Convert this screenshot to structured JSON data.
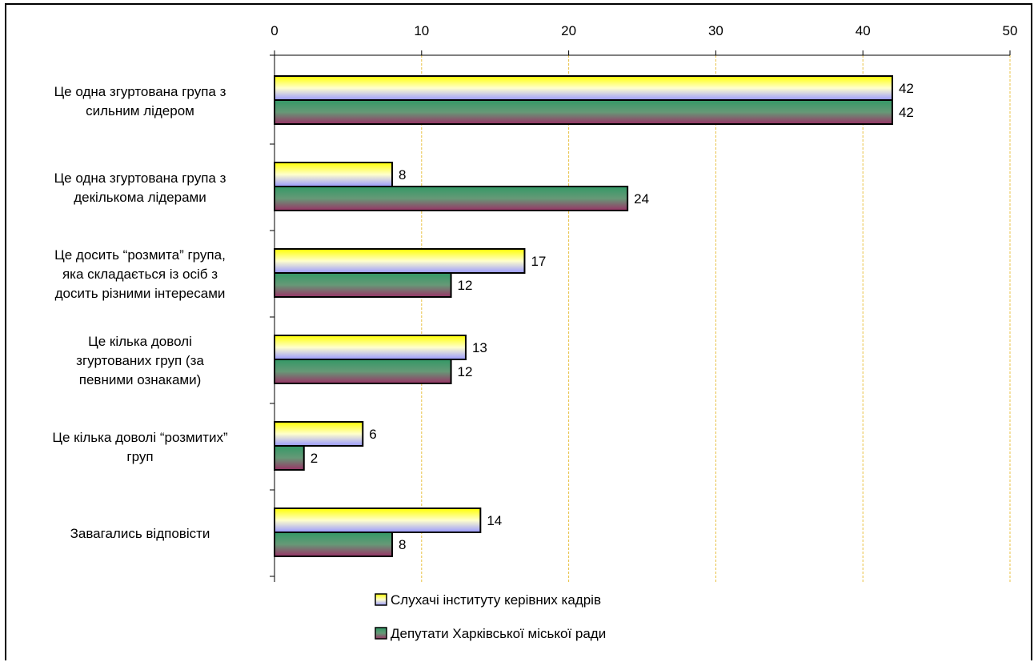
{
  "chart_data": {
    "type": "bar",
    "orientation": "horizontal",
    "categories": [
      [
        "Це одна згуртована група з",
        "сильним лідером"
      ],
      [
        "Це одна згуртована група з",
        "декількома лідерами"
      ],
      [
        "Це досить “розмита” група,",
        "яка складається із осіб з",
        "досить різними інтересами"
      ],
      [
        "Це кілька доволі",
        "згуртованих груп (за",
        "певними ознаками)"
      ],
      [
        "Це кілька доволі “розмитих”",
        "груп"
      ],
      [
        "Завагались відповісти"
      ]
    ],
    "series": [
      {
        "name": "Слухачі інституту керівних кадрів",
        "values": [
          42,
          8,
          17,
          13,
          6,
          14
        ]
      },
      {
        "name": "Депутати Харківської міської ради",
        "values": [
          42,
          24,
          12,
          12,
          2,
          8
        ]
      }
    ],
    "xlim": [
      0,
      50
    ],
    "xticks": [
      "0",
      "10",
      "20",
      "30",
      "40",
      "50"
    ],
    "x_axis_position": "top",
    "grid": "vertical dashed",
    "legend_position": "bottom",
    "colors": {
      "series1_top": "#ffff00",
      "series1_bottom": "#9999ff",
      "series2_top": "#339966",
      "series2_bottom": "#993366",
      "grid": "#e8c040"
    }
  }
}
